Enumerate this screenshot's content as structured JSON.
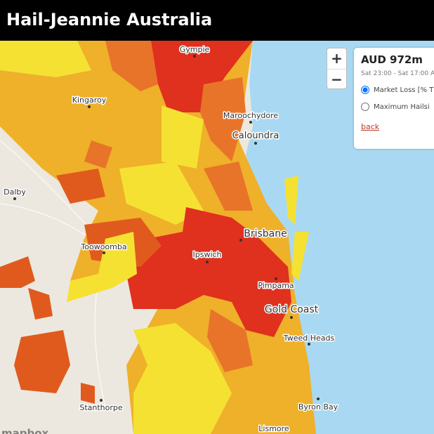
{
  "header": {
    "title": "Hail-Jeannie Australia"
  },
  "controls": {
    "zoom_in": "+",
    "zoom_out": "−"
  },
  "panel": {
    "amount": "AUD 972m",
    "time_range": "Sat 23:00 - Sat 17:00 A",
    "options": [
      "Market Loss [% T",
      "Maximum Hailsi"
    ],
    "back": "back"
  },
  "places": [
    "Gympie",
    "Kingaroy",
    "Maroochydore",
    "Caloundra",
    "Dalby",
    "Brisbane",
    "Toowoomba",
    "Ipswich",
    "Pimpama",
    "Gold Coast",
    "Tweed Heads",
    "Stanthorpe",
    "Byron Bay",
    "Lismore"
  ],
  "attribution": "mapbox"
}
